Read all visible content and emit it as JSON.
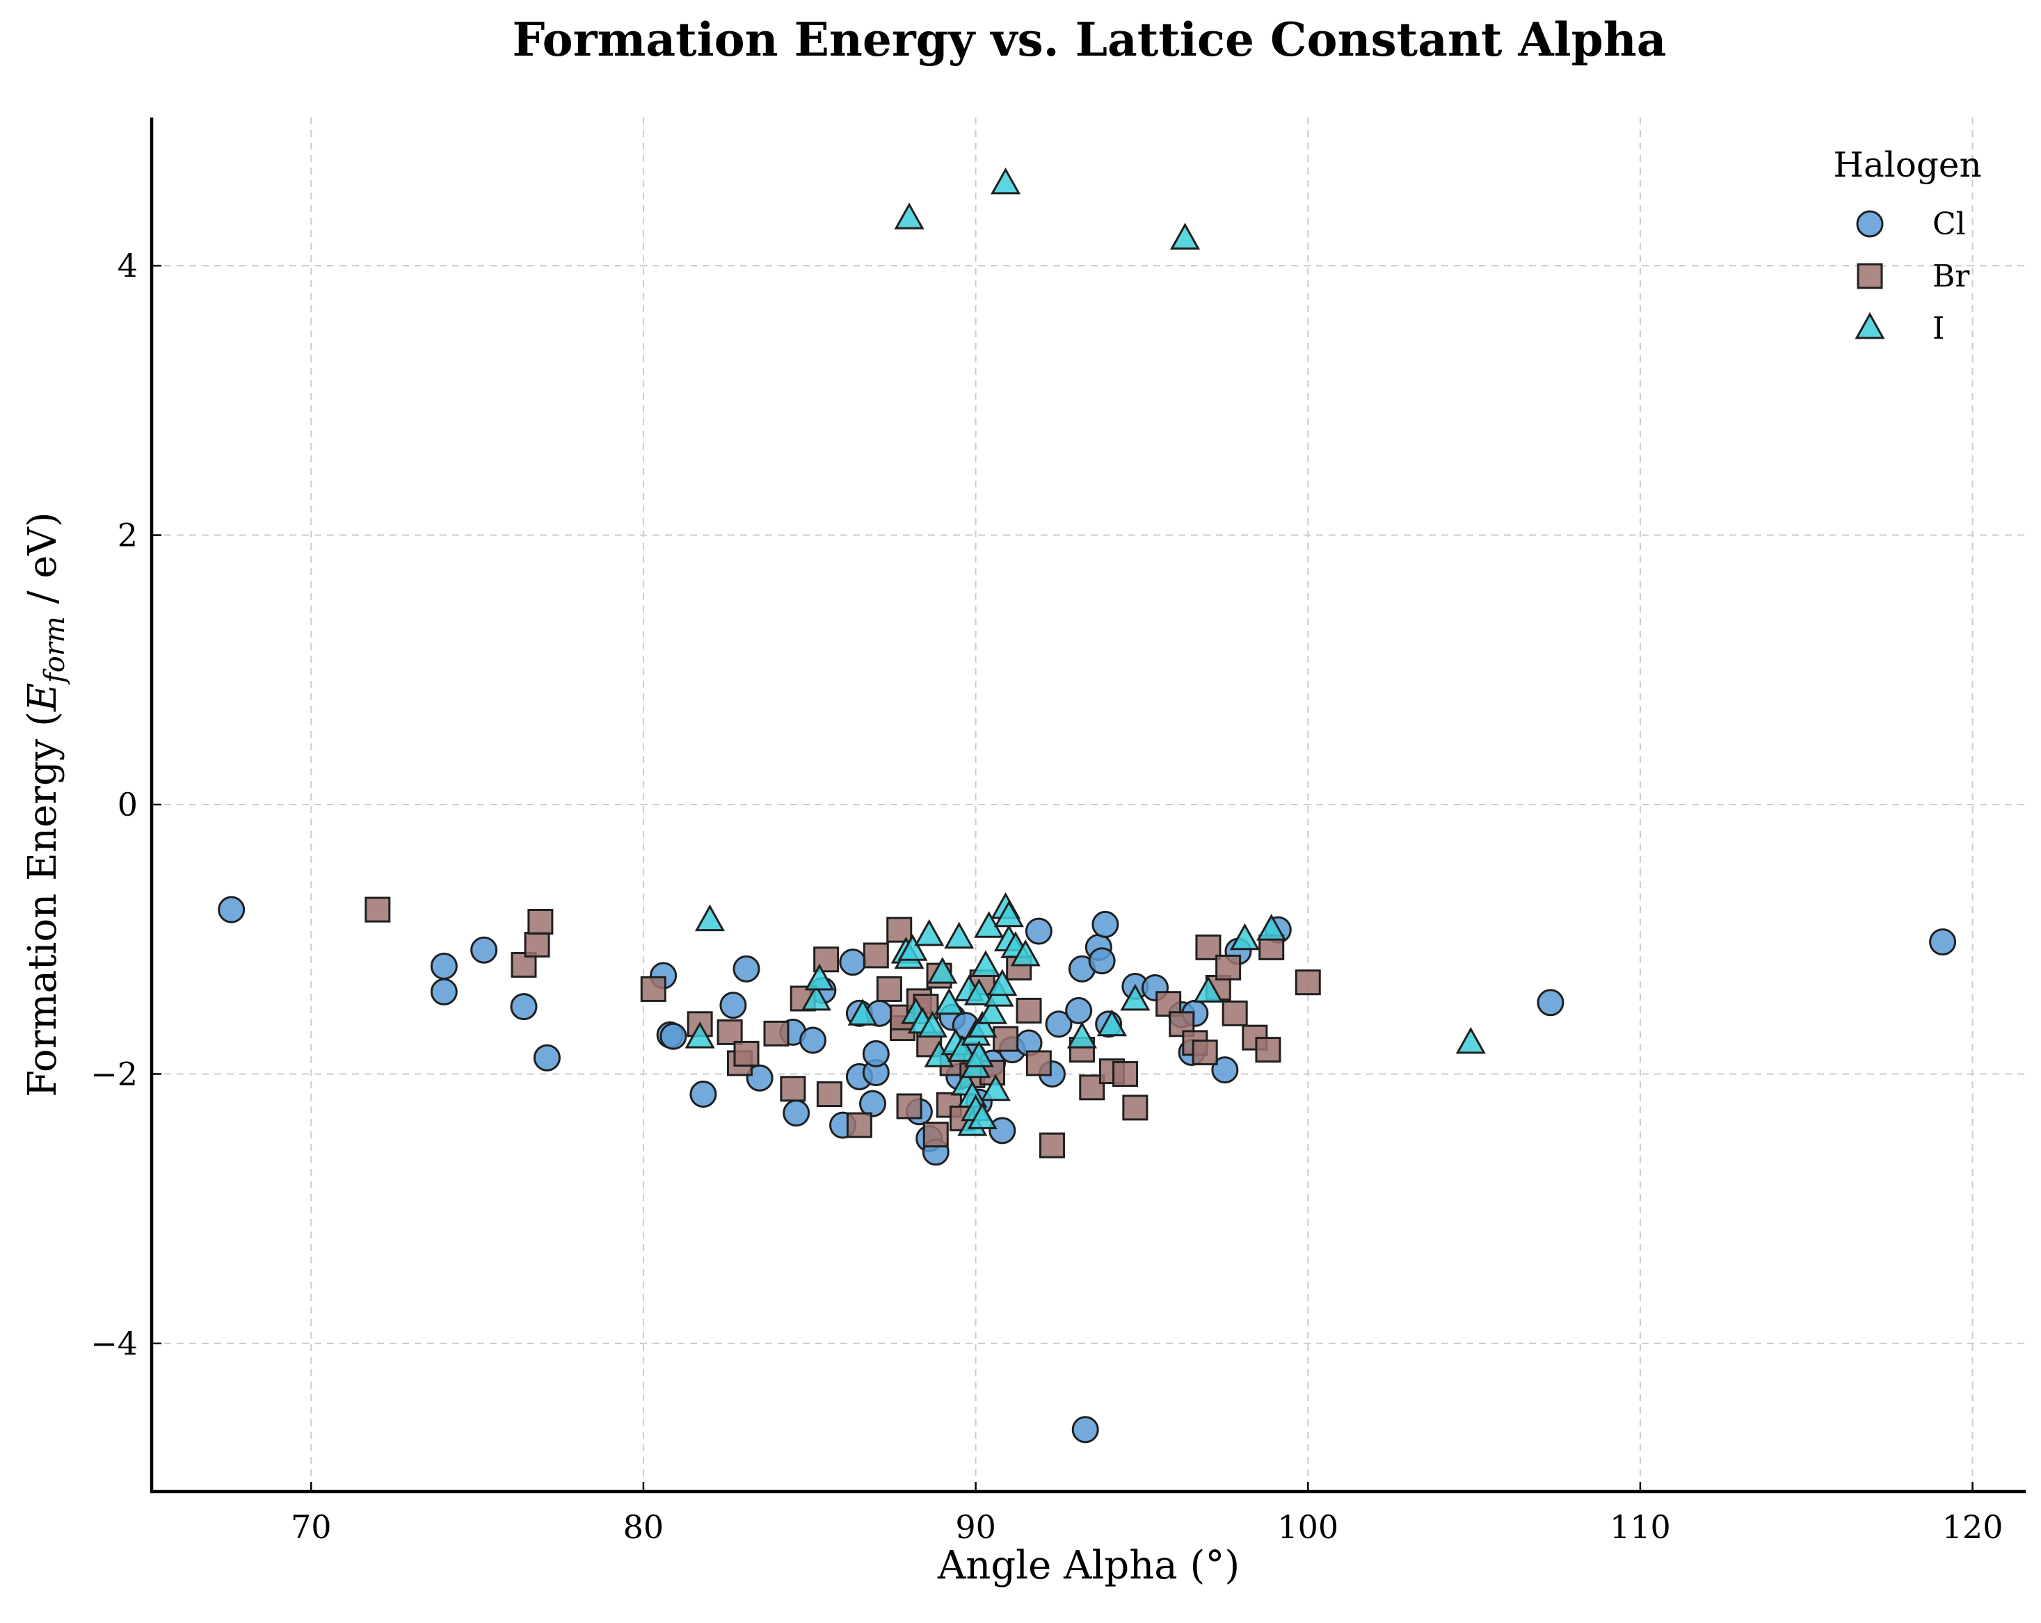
{
  "chart_data": {
    "type": "scatter",
    "title": "Formation Energy vs. Lattice Constant Alpha",
    "xlabel": "Angle Alpha (°)",
    "ylabel": {
      "prefix": "Formation Energy (",
      "symbol": "E",
      "subscript": "form",
      "suffix": " / eV)"
    },
    "xlim": [
      65.2,
      121.6
    ],
    "ylim": [
      -5.1,
      5.1
    ],
    "xticks": [
      70,
      80,
      90,
      100,
      110,
      120
    ],
    "xtick_labels": [
      "70",
      "80",
      "90",
      "100",
      "110",
      "120"
    ],
    "yticks": [
      -4,
      -2,
      0,
      2,
      4
    ],
    "ytick_labels": [
      "−4",
      "−2",
      "0",
      "2",
      "4"
    ],
    "grid": true,
    "legend": {
      "title": "Halogen",
      "placement": "top-right"
    },
    "series": [
      {
        "name": "Cl",
        "marker": "circle",
        "color": "#5b9bd5",
        "x": [
          67.6,
          74.0,
          74.0,
          75.2,
          76.4,
          77.1,
          80.6,
          80.8,
          80.9,
          81.8,
          82.7,
          83.1,
          83.5,
          84.5,
          84.6,
          85.1,
          85.4,
          86.0,
          86.3,
          86.5,
          86.5,
          86.9,
          87.0,
          87.0,
          87.1,
          88.3,
          88.6,
          88.8,
          89.3,
          89.5,
          89.7,
          89.9,
          90.1,
          90.5,
          90.8,
          91.1,
          91.6,
          91.9,
          92.3,
          92.5,
          93.1,
          93.2,
          93.3,
          93.7,
          93.8,
          93.9,
          94.0,
          94.8,
          95.4,
          96.2,
          96.5,
          96.6,
          97.5,
          97.9,
          99.1,
          107.3,
          119.1
        ],
        "y": [
          -0.78,
          -1.39,
          -1.2,
          -1.08,
          -1.5,
          -1.88,
          -1.27,
          -1.71,
          -1.72,
          -2.15,
          -1.49,
          -1.22,
          -2.03,
          -1.69,
          -2.29,
          -1.75,
          -1.38,
          -2.38,
          -1.17,
          -1.55,
          -2.02,
          -2.22,
          -1.99,
          -1.85,
          -1.55,
          -2.28,
          -2.48,
          -2.58,
          -1.58,
          -2.02,
          -1.64,
          -1.86,
          -2.21,
          -1.92,
          -2.42,
          -1.82,
          -1.77,
          -0.94,
          -2.0,
          -1.63,
          -1.53,
          -1.22,
          -4.64,
          -1.06,
          -1.16,
          -0.89,
          -1.63,
          -1.35,
          -1.36,
          -1.56,
          -1.84,
          -1.55,
          -1.97,
          -1.09,
          -0.93,
          -1.47,
          -1.02
        ]
      },
      {
        "name": "Br",
        "marker": "square",
        "color": "#9e7470",
        "x": [
          72.0,
          76.4,
          76.8,
          76.9,
          80.3,
          81.7,
          82.6,
          82.9,
          83.1,
          84.0,
          84.5,
          84.8,
          85.5,
          85.6,
          86.5,
          87.0,
          87.4,
          87.7,
          87.8,
          87.8,
          88.0,
          88.3,
          88.5,
          88.6,
          88.8,
          88.9,
          89.2,
          89.3,
          89.6,
          89.9,
          90.2,
          90.5,
          90.9,
          91.3,
          91.6,
          91.9,
          92.3,
          93.2,
          93.5,
          94.1,
          94.5,
          94.8,
          95.8,
          96.2,
          96.6,
          96.9,
          97.0,
          97.3,
          97.6,
          97.8,
          98.4,
          98.8,
          98.9,
          100.0
        ],
        "y": [
          -0.78,
          -1.19,
          -1.04,
          -0.87,
          -1.37,
          -1.63,
          -1.69,
          -1.92,
          -1.85,
          -1.7,
          -2.11,
          -1.44,
          -1.15,
          -2.15,
          -2.38,
          -1.12,
          -1.37,
          -0.93,
          -1.66,
          -1.58,
          -2.24,
          -1.46,
          -1.5,
          -1.78,
          -2.45,
          -1.27,
          -2.23,
          -1.92,
          -2.33,
          -2.01,
          -1.32,
          -1.99,
          -1.74,
          -1.21,
          -1.53,
          -1.92,
          -2.53,
          -1.82,
          -2.1,
          -1.98,
          -2.0,
          -2.25,
          -1.48,
          -1.63,
          -1.77,
          -1.84,
          -1.06,
          -1.36,
          -1.21,
          -1.55,
          -1.73,
          -1.82,
          -1.06,
          -1.32
        ]
      },
      {
        "name": "I",
        "marker": "triangle",
        "color": "#3ecfdc",
        "x": [
          81.7,
          82.0,
          85.2,
          85.3,
          86.6,
          87.9,
          88.0,
          88.1,
          88.2,
          88.4,
          88.6,
          88.7,
          88.9,
          89.0,
          89.2,
          89.4,
          89.5,
          89.6,
          89.7,
          89.8,
          89.9,
          89.9,
          90.0,
          90.0,
          90.0,
          90.1,
          90.1,
          90.2,
          90.2,
          90.3,
          90.4,
          90.5,
          90.6,
          90.7,
          90.8,
          90.9,
          91.0,
          91.0,
          91.2,
          91.5,
          93.2,
          94.1,
          94.8,
          96.3,
          97.0,
          98.1,
          98.9,
          104.9,
          88.0,
          90.9
        ],
        "y": [
          -1.73,
          -0.86,
          -1.45,
          -1.3,
          -1.56,
          -1.1,
          -1.14,
          -1.08,
          -1.55,
          -1.62,
          -0.97,
          -1.65,
          -1.87,
          -1.25,
          -1.48,
          -1.78,
          -0.99,
          -1.83,
          -2.08,
          -1.38,
          -2.38,
          -2.17,
          -1.95,
          -2.27,
          -1.71,
          -1.87,
          -1.41,
          -1.65,
          -2.33,
          -1.2,
          -0.91,
          -1.55,
          -2.12,
          -1.42,
          -1.34,
          -0.77,
          -0.83,
          -1.01,
          -1.06,
          -1.12,
          -1.73,
          -1.64,
          -1.45,
          4.2,
          -1.39,
          -1.0,
          -0.93,
          -1.77,
          4.35,
          4.61
        ]
      }
    ]
  }
}
